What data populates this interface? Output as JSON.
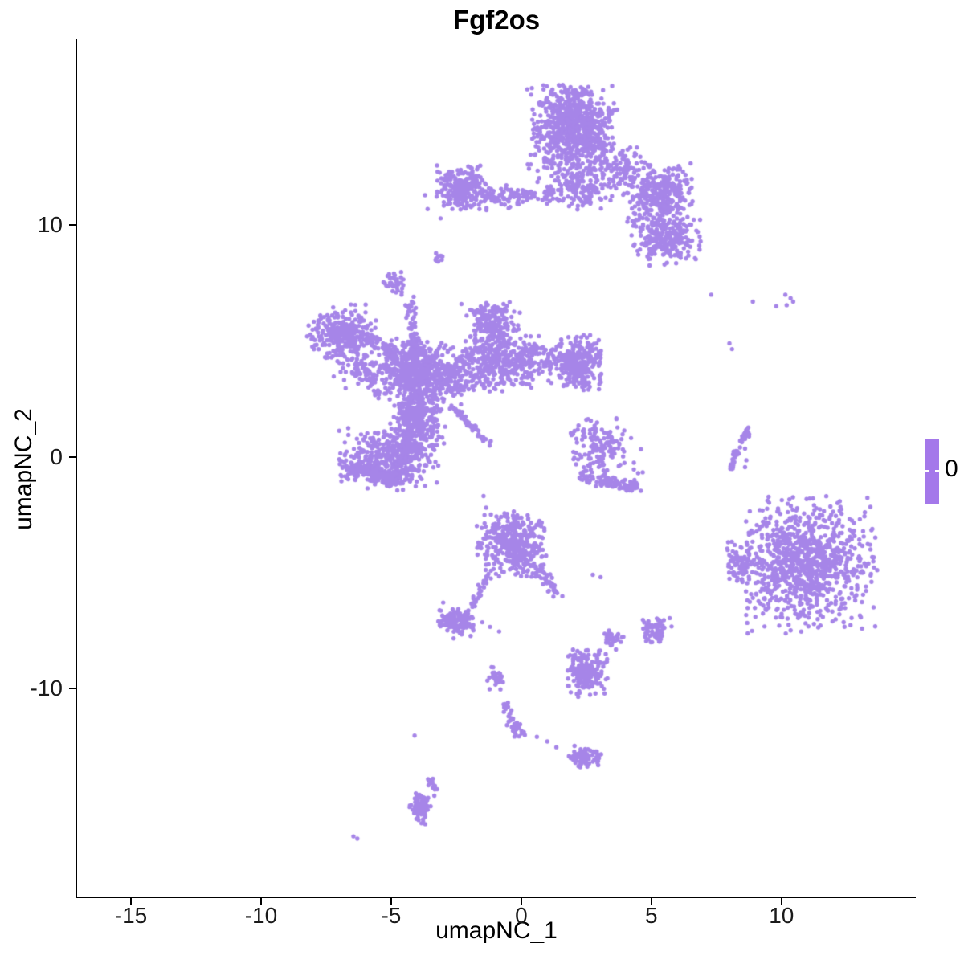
{
  "title": "Fgf2os",
  "x_axis_label": "umapNC_1",
  "y_axis_label": "umapNC_2",
  "legend": {
    "tick_label": "0"
  },
  "colors": {
    "point": "#a685e8",
    "legend_bar": "#a478ea",
    "axis_line": "#000000",
    "tick_text": "#1a1a1a",
    "background": "#ffffff"
  },
  "chart_data": {
    "type": "scatter",
    "title": "Fgf2os",
    "xlabel": "umapNC_1",
    "ylabel": "umapNC_2",
    "x_ticks": [
      -15,
      -10,
      -5,
      0,
      5,
      10
    ],
    "y_ticks": [
      -10,
      0,
      10
    ],
    "xlim": [
      -17.1,
      15.1
    ],
    "ylim": [
      -19.0,
      18.0
    ],
    "grid": false,
    "legend_position": "right",
    "point_color": "#a685e8",
    "point_radius_px": 2.7,
    "n_points_approx": 7400,
    "expression_value_shown": 0,
    "clusters": [
      {
        "name": "top-main-core",
        "type": "gauss",
        "cx": 2.05,
        "cy": 14.4,
        "sx": 0.8,
        "sy": 0.95,
        "n": 680,
        "clip": [
          0.35,
          3.65,
          12.3,
          16.1
        ]
      },
      {
        "name": "top-main-halo",
        "type": "gauss",
        "cx": 2.0,
        "cy": 13.5,
        "sx": 1.0,
        "sy": 1.3,
        "n": 140,
        "clip": [
          0.2,
          3.8,
          10.9,
          16.1
        ]
      },
      {
        "name": "top-main-lower",
        "type": "gauss",
        "cx": 2.3,
        "cy": 11.7,
        "sx": 0.65,
        "sy": 0.55,
        "n": 150,
        "clip": [
          0.8,
          3.6,
          10.6,
          12.7
        ]
      },
      {
        "name": "top-band",
        "type": "line",
        "x1": -1.6,
        "y1": 11.2,
        "x2": 1.2,
        "y2": 11.35,
        "jitter": 0.22,
        "n": 110
      },
      {
        "name": "top-left-clump",
        "type": "gauss",
        "cx": -2.3,
        "cy": 11.6,
        "sx": 0.5,
        "sy": 0.42,
        "n": 240,
        "clip": [
          -3.3,
          -1.1,
          10.6,
          12.6
        ]
      },
      {
        "name": "top-left-stragglers",
        "type": "dots",
        "pts": [
          [
            -3.7,
            11.3
          ],
          [
            -3.6,
            10.7
          ],
          [
            -3.1,
            10.3
          ]
        ]
      },
      {
        "name": "top-right-conn",
        "type": "gauss",
        "cx": 3.9,
        "cy": 12.5,
        "sx": 0.5,
        "sy": 0.5,
        "n": 100,
        "clip": [
          2.8,
          5.0,
          11.2,
          13.7
        ]
      },
      {
        "name": "right-arm-upper",
        "type": "gauss",
        "cx": 5.5,
        "cy": 11.4,
        "sx": 0.6,
        "sy": 0.5,
        "n": 270,
        "clip": [
          4.2,
          6.6,
          10.3,
          12.7
        ]
      },
      {
        "name": "right-arm-lower",
        "type": "gauss",
        "cx": 5.6,
        "cy": 9.4,
        "sx": 0.62,
        "sy": 0.5,
        "n": 230,
        "clip": [
          4.2,
          6.9,
          8.2,
          10.5
        ]
      },
      {
        "name": "right-arm-conn",
        "type": "gauss",
        "cx": 5.0,
        "cy": 10.4,
        "sx": 0.5,
        "sy": 0.4,
        "n": 80
      },
      {
        "name": "dot-left-of-band",
        "type": "gauss",
        "cx": -3.2,
        "cy": 8.6,
        "sx": 0.1,
        "sy": 0.1,
        "n": 10
      },
      {
        "name": "small-blob-upper-mid",
        "type": "gauss",
        "cx": -4.9,
        "cy": 7.5,
        "sx": 0.18,
        "sy": 0.2,
        "n": 40
      },
      {
        "name": "mid-left-blob",
        "type": "gauss",
        "cx": -6.9,
        "cy": 5.3,
        "sx": 0.62,
        "sy": 0.55,
        "n": 290,
        "clip": [
          -8.25,
          -5.55,
          4.0,
          6.6
        ]
      },
      {
        "name": "mid-left-chain",
        "type": "line",
        "x1": -6.2,
        "y1": 5.4,
        "x2": -4.8,
        "y2": 4.3,
        "jitter": 0.18,
        "n": 70
      },
      {
        "name": "hub-up-strand",
        "type": "line",
        "x1": -4.25,
        "y1": 6.8,
        "x2": -4.1,
        "y2": 4.6,
        "jitter": 0.13,
        "n": 55
      },
      {
        "name": "hub-up-dots",
        "type": "dots",
        "pts": [
          [
            -4.6,
            7.0
          ],
          [
            -4.45,
            6.55
          ],
          [
            -2.3,
            6.6
          ],
          [
            -2.1,
            6.1
          ]
        ]
      },
      {
        "name": "hub-core",
        "type": "gauss",
        "cx": -4.0,
        "cy": 3.7,
        "sx": 0.62,
        "sy": 0.6,
        "n": 500,
        "clip": [
          -5.4,
          -2.6,
          2.3,
          5.2
        ]
      },
      {
        "name": "hub-column",
        "type": "gauss",
        "cx": -4.0,
        "cy": 1.6,
        "sx": 0.48,
        "sy": 0.75,
        "n": 330,
        "clip": [
          -5.1,
          -2.9,
          0.2,
          2.9
        ]
      },
      {
        "name": "hub-lower-bulge",
        "type": "gauss",
        "cx": -4.6,
        "cy": 0.0,
        "sx": 0.62,
        "sy": 0.6,
        "n": 290,
        "clip": [
          -5.9,
          -3.1,
          -1.3,
          1.2
        ]
      },
      {
        "name": "hub-left-arm",
        "type": "gauss",
        "cx": -6.0,
        "cy": 3.6,
        "sx": 0.5,
        "sy": 0.38,
        "n": 100
      },
      {
        "name": "mid-top-blob",
        "type": "gauss",
        "cx": -1.1,
        "cy": 5.7,
        "sx": 0.5,
        "sy": 0.5,
        "n": 210,
        "clip": [
          -2.0,
          0.0,
          4.7,
          6.7
        ]
      },
      {
        "name": "mid-right-clump",
        "type": "gauss",
        "cx": -0.9,
        "cy": 4.0,
        "sx": 0.8,
        "sy": 0.55,
        "n": 330,
        "clip": [
          -2.6,
          0.8,
          2.8,
          5.3
        ]
      },
      {
        "name": "hub-midright-conn",
        "type": "gauss",
        "cx": -2.6,
        "cy": 3.4,
        "sx": 0.5,
        "sy": 0.45,
        "n": 120
      },
      {
        "name": "far-right-clump",
        "type": "gauss",
        "cx": 2.1,
        "cy": 4.0,
        "sx": 0.6,
        "sy": 0.55,
        "n": 330,
        "clip": [
          0.8,
          3.1,
          2.7,
          5.3
        ]
      },
      {
        "name": "clump-conn",
        "type": "line",
        "x1": -0.2,
        "y1": 4.3,
        "x2": 1.2,
        "y2": 4.4,
        "jitter": 0.3,
        "n": 70
      },
      {
        "name": "diag-streak",
        "type": "line",
        "x1": -2.7,
        "y1": 2.2,
        "x2": -1.2,
        "y2": 0.5,
        "jitter": 0.05,
        "n": 70
      },
      {
        "name": "lower-left-ring",
        "type": "gauss",
        "cx": -5.7,
        "cy": -0.3,
        "sx": 0.75,
        "sy": 0.6,
        "n": 190,
        "clip": [
          -7.0,
          -4.2,
          -1.4,
          1.3
        ]
      },
      {
        "name": "lower-left-arc",
        "type": "line",
        "x1": -6.5,
        "y1": -0.4,
        "x2": -4.6,
        "y2": -1.1,
        "jitter": 0.16,
        "n": 130
      },
      {
        "name": "center-right-blob",
        "type": "gauss",
        "cx": 3.0,
        "cy": 0.3,
        "sx": 0.65,
        "sy": 0.7,
        "n": 140,
        "clip": [
          1.9,
          4.8,
          -1.0,
          1.8
        ]
      },
      {
        "name": "center-right-arc",
        "type": "line",
        "x1": 2.3,
        "y1": -0.9,
        "x2": 4.5,
        "y2": -1.3,
        "jitter": 0.12,
        "n": 110
      },
      {
        "name": "center-right-dots",
        "type": "dots",
        "pts": [
          [
            2.5,
            1.6
          ],
          [
            2.2,
            1.35
          ]
        ]
      },
      {
        "name": "right-crescent-a",
        "type": "line",
        "x1": 8.75,
        "y1": 1.2,
        "x2": 8.3,
        "y2": 0.3,
        "jitter": 0.05,
        "n": 30
      },
      {
        "name": "right-crescent-b",
        "type": "line",
        "x1": 8.3,
        "y1": 0.3,
        "x2": 8.05,
        "y2": -0.6,
        "jitter": 0.05,
        "n": 28
      },
      {
        "name": "right-crescent-dots",
        "type": "dots",
        "pts": [
          [
            8.6,
            0.35
          ],
          [
            8.65,
            -0.15
          ],
          [
            8.6,
            -0.45
          ]
        ]
      },
      {
        "name": "bottom-right-main",
        "type": "gauss",
        "cx": 10.9,
        "cy": -4.6,
        "sx": 1.25,
        "sy": 1.25,
        "n": 950,
        "clip": [
          8.6,
          13.7,
          -7.8,
          -1.7
        ]
      },
      {
        "name": "bottom-right-left-lobe",
        "type": "gauss",
        "cx": 8.3,
        "cy": -4.6,
        "sx": 0.32,
        "sy": 0.45,
        "n": 80,
        "clip": [
          7.9,
          8.9,
          -5.5,
          -3.6
        ]
      },
      {
        "name": "bottom-right-dots",
        "type": "dots",
        "pts": [
          [
            9.05,
            -2.95
          ],
          [
            9.05,
            -4.65
          ],
          [
            8.9,
            -6.1
          ]
        ]
      },
      {
        "name": "bottom-center-main",
        "type": "gauss",
        "cx": -0.3,
        "cy": -3.7,
        "sx": 0.72,
        "sy": 0.72,
        "n": 390,
        "clip": [
          -1.75,
          1.0,
          -5.2,
          -2.35
        ]
      },
      {
        "name": "bottom-center-tail",
        "type": "line",
        "x1": 0.6,
        "y1": -4.6,
        "x2": 1.35,
        "y2": -6.0,
        "jitter": 0.13,
        "n": 45
      },
      {
        "name": "bottom-center-left-strand",
        "type": "line",
        "x1": -1.25,
        "y1": -5.1,
        "x2": -1.85,
        "y2": -6.4,
        "jitter": 0.07,
        "n": 30
      },
      {
        "name": "small-clump-left",
        "type": "gauss",
        "cx": -2.5,
        "cy": -7.1,
        "sx": 0.38,
        "sy": 0.28,
        "n": 130,
        "clip": [
          -3.2,
          -1.8,
          -7.8,
          -6.4
        ]
      },
      {
        "name": "small-clump-dots",
        "type": "dots",
        "pts": [
          [
            -1.5,
            -7.15
          ],
          [
            -1.2,
            -7.35
          ],
          [
            -0.85,
            -7.55
          ],
          [
            -2.6,
            -7.85
          ],
          [
            -3.0,
            -6.3
          ]
        ]
      },
      {
        "name": "pair-dots",
        "type": "dots",
        "pts": [
          [
            2.75,
            -5.1
          ],
          [
            3.05,
            -5.2
          ]
        ]
      },
      {
        "name": "conn-dots-center",
        "type": "dots",
        "pts": [
          [
            -1.45,
            -1.7
          ],
          [
            -1.35,
            -2.2
          ]
        ]
      },
      {
        "name": "bottom-small-cluster",
        "type": "gauss",
        "cx": 2.5,
        "cy": -9.35,
        "sx": 0.42,
        "sy": 0.5,
        "n": 185,
        "clip": [
          1.7,
          3.4,
          -10.4,
          -8.3
        ]
      },
      {
        "name": "chain-blob",
        "type": "gauss",
        "cx": -0.95,
        "cy": -9.5,
        "sx": 0.16,
        "sy": 0.2,
        "n": 28
      },
      {
        "name": "chain-strand",
        "type": "line",
        "x1": -0.65,
        "y1": -10.6,
        "x2": -0.05,
        "y2": -12.0,
        "jitter": 0.1,
        "n": 40
      },
      {
        "name": "chain-dots",
        "type": "dots",
        "pts": [
          [
            -0.8,
            -10.05
          ],
          [
            -0.55,
            -11.6
          ],
          [
            -0.3,
            -11.85
          ],
          [
            0.1,
            -11.9
          ],
          [
            0.6,
            -12.1
          ],
          [
            1.0,
            -12.3
          ],
          [
            1.35,
            -12.55
          ]
        ]
      },
      {
        "name": "tiny-cluster-low",
        "type": "gauss",
        "cx": 2.45,
        "cy": -13.0,
        "sx": 0.35,
        "sy": 0.25,
        "n": 80,
        "clip": [
          1.75,
          3.15,
          -13.6,
          -12.35
        ]
      },
      {
        "name": "small-blob-right-low",
        "type": "gauss",
        "cx": 5.2,
        "cy": -7.5,
        "sx": 0.28,
        "sy": 0.3,
        "n": 70,
        "clip": [
          4.55,
          5.85,
          -8.15,
          -6.85
        ]
      },
      {
        "name": "small-blob-right-low-b",
        "type": "gauss",
        "cx": 3.55,
        "cy": -7.85,
        "sx": 0.18,
        "sy": 0.16,
        "n": 30
      },
      {
        "name": "s-strand-top",
        "type": "line",
        "x1": -3.55,
        "y1": -13.75,
        "x2": -3.35,
        "y2": -14.5,
        "jitter": 0.08,
        "n": 14
      },
      {
        "name": "s-strand-blob",
        "type": "gauss",
        "cx": -3.85,
        "cy": -15.1,
        "sx": 0.2,
        "sy": 0.38,
        "n": 90,
        "clip": [
          -4.3,
          -3.3,
          -15.9,
          -14.3
        ]
      },
      {
        "name": "isolated-dots-bottom-left",
        "type": "dots",
        "pts": [
          [
            -6.45,
            -16.4
          ],
          [
            -6.3,
            -16.5
          ]
        ]
      },
      {
        "name": "isolated-dot-mid-low",
        "type": "dots",
        "pts": [
          [
            -4.1,
            -12.05
          ]
        ]
      },
      {
        "name": "scatter-right-top",
        "type": "dots",
        "pts": [
          [
            7.3,
            7.0
          ],
          [
            8.9,
            6.7
          ],
          [
            9.8,
            6.5
          ],
          [
            10.15,
            7.0
          ],
          [
            10.35,
            6.85
          ],
          [
            10.45,
            6.7
          ],
          [
            10.2,
            6.55
          ],
          [
            8.0,
            4.9
          ],
          [
            8.1,
            4.65
          ]
        ]
      }
    ]
  }
}
